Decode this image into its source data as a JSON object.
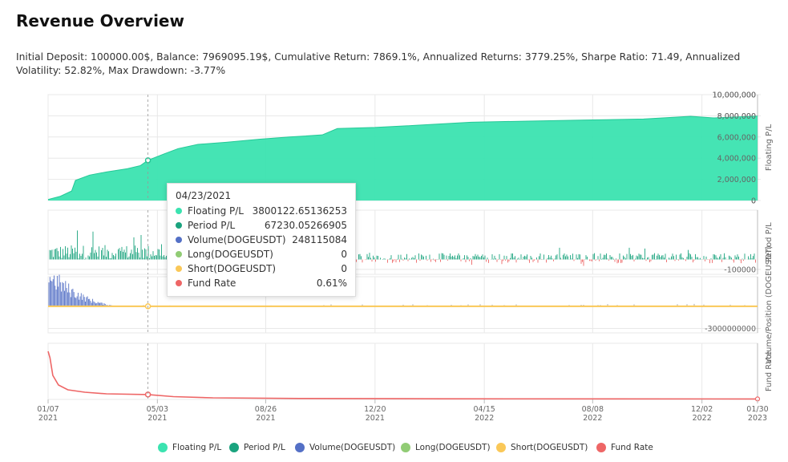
{
  "page": {
    "title": "Revenue Overview",
    "stats": "Initial Deposit: 100000.00$, Balance: 7969095.19$, Cumulative Return: 7869.1%, Annualized Returns: 3779.25%, Sharpe Ratio: 71.49, Annualized Volatility: 52.82%, Max Drawdown: -3.77%"
  },
  "colors": {
    "floating": "#3be3b0",
    "period": "#1aa37e",
    "volume": "#5470c6",
    "long": "#91cc75",
    "short": "#fac858",
    "fund": "#ee6666",
    "grid": "#e8e8e8",
    "axis": "#bbbbbb"
  },
  "tooltip": {
    "date": "04/23/2021",
    "rows": [
      {
        "name": "Floating P/L",
        "value": "3800122.65136253",
        "color": "#3be3b0"
      },
      {
        "name": "Period P/L",
        "value": "67230.05266905",
        "color": "#1aa37e"
      },
      {
        "name": "Volume(DOGEUSDT)",
        "value": "248115084",
        "color": "#5470c6"
      },
      {
        "name": "Long(DOGEUSDT)",
        "value": "0",
        "color": "#91cc75"
      },
      {
        "name": "Short(DOGEUSDT)",
        "value": "0",
        "color": "#fac858"
      },
      {
        "name": "Fund Rate",
        "value": "0.61%",
        "color": "#ee6666"
      }
    ]
  },
  "legend": [
    {
      "name": "Floating P/L",
      "color": "#3be3b0"
    },
    {
      "name": "Period P/L",
      "color": "#1aa37e"
    },
    {
      "name": "Volume(DOGEUSDT)",
      "color": "#5470c6"
    },
    {
      "name": "Long(DOGEUSDT)",
      "color": "#91cc75"
    },
    {
      "name": "Short(DOGEUSDT)",
      "color": "#fac858"
    },
    {
      "name": "Fund Rate",
      "color": "#ee6666"
    }
  ],
  "chart_data": {
    "type": "area",
    "x_range": [
      "2021-01-07",
      "2023-01-30"
    ],
    "x_ticks": [
      {
        "date": "2021-01-07",
        "line1": "01/07",
        "line2": "2021"
      },
      {
        "date": "2021-05-03",
        "line1": "05/03",
        "line2": "2021"
      },
      {
        "date": "2021-08-26",
        "line1": "08/26",
        "line2": "2021"
      },
      {
        "date": "2021-12-20",
        "line1": "12/20",
        "line2": "2021"
      },
      {
        "date": "2022-04-15",
        "line1": "04/15",
        "line2": "2022"
      },
      {
        "date": "2022-08-08",
        "line1": "08/08",
        "line2": "2022"
      },
      {
        "date": "2022-12-02",
        "line1": "12/02",
        "line2": "2022"
      },
      {
        "date": "2023-01-30",
        "line1": "01/30",
        "line2": "2023"
      }
    ],
    "hover_date": "2021-04-23",
    "grid": true,
    "legend_position": "bottom",
    "panels": [
      {
        "id": "floating",
        "ylabel": "Floating P/L",
        "ylim": [
          0,
          10000000
        ],
        "y_ticks": [
          {
            "value": 0,
            "label": "0"
          },
          {
            "value": 2000000,
            "label": "2,000,000"
          },
          {
            "value": 4000000,
            "label": "4,000,000"
          },
          {
            "value": 6000000,
            "label": "6,000,000"
          },
          {
            "value": 8000000,
            "label": "8,000,000"
          },
          {
            "value": 10000000,
            "label": "10,000,000"
          }
        ],
        "series": [
          {
            "name": "Floating P/L",
            "points": [
              [
                "2021-01-07",
                100000
              ],
              [
                "2021-01-20",
                400000
              ],
              [
                "2021-02-01",
                900000
              ],
              [
                "2021-02-05",
                1900000
              ],
              [
                "2021-02-20",
                2400000
              ],
              [
                "2021-03-10",
                2700000
              ],
              [
                "2021-04-01",
                3000000
              ],
              [
                "2021-04-15",
                3300000
              ],
              [
                "2021-04-23",
                3800000
              ],
              [
                "2021-05-10",
                4400000
              ],
              [
                "2021-05-25",
                4900000
              ],
              [
                "2021-06-15",
                5300000
              ],
              [
                "2021-07-15",
                5500000
              ],
              [
                "2021-08-20",
                5800000
              ],
              [
                "2021-09-20",
                6000000
              ],
              [
                "2021-10-25",
                6200000
              ],
              [
                "2021-11-10",
                6800000
              ],
              [
                "2021-12-20",
                6900000
              ],
              [
                "2022-02-01",
                7100000
              ],
              [
                "2022-04-01",
                7400000
              ],
              [
                "2022-06-01",
                7500000
              ],
              [
                "2022-08-01",
                7600000
              ],
              [
                "2022-10-01",
                7700000
              ],
              [
                "2022-11-20",
                7950000
              ],
              [
                "2022-12-15",
                7800000
              ],
              [
                "2023-01-30",
                7969095
              ]
            ]
          }
        ]
      },
      {
        "id": "period",
        "ylabel": "Period P/L",
        "ylim": [
          -150000,
          500000
        ],
        "y_ticks": [
          {
            "value": -100000,
            "label": "-100000"
          }
        ],
        "series": [
          {
            "name": "Period P/L"
          }
        ]
      },
      {
        "id": "volume",
        "ylabel": "Volume/Position (DOGEUSDT)",
        "ylim": [
          -3600000000,
          4000000000
        ],
        "y_ticks": [
          {
            "value": -3000000000,
            "label": "-3000000000"
          }
        ],
        "series": [
          {
            "name": "Volume(DOGEUSDT)"
          },
          {
            "name": "Long(DOGEUSDT)"
          },
          {
            "name": "Short(DOGEUSDT)"
          }
        ]
      },
      {
        "id": "fund",
        "ylabel": "Fund Rate",
        "ylim": [
          0,
          7
        ],
        "y_ticks": [],
        "series": [
          {
            "name": "Fund Rate",
            "points": [
              [
                "2021-01-07",
                6.0
              ],
              [
                "2021-01-09",
                5.2
              ],
              [
                "2021-01-12",
                3.0
              ],
              [
                "2021-01-18",
                1.8
              ],
              [
                "2021-01-28",
                1.2
              ],
              [
                "2021-02-15",
                0.9
              ],
              [
                "2021-03-10",
                0.7
              ],
              [
                "2021-04-23",
                0.61
              ],
              [
                "2021-05-20",
                0.35
              ],
              [
                "2021-07-01",
                0.2
              ],
              [
                "2021-10-01",
                0.12
              ],
              [
                "2022-03-01",
                0.08
              ],
              [
                "2023-01-30",
                0.06
              ]
            ]
          }
        ]
      }
    ]
  }
}
